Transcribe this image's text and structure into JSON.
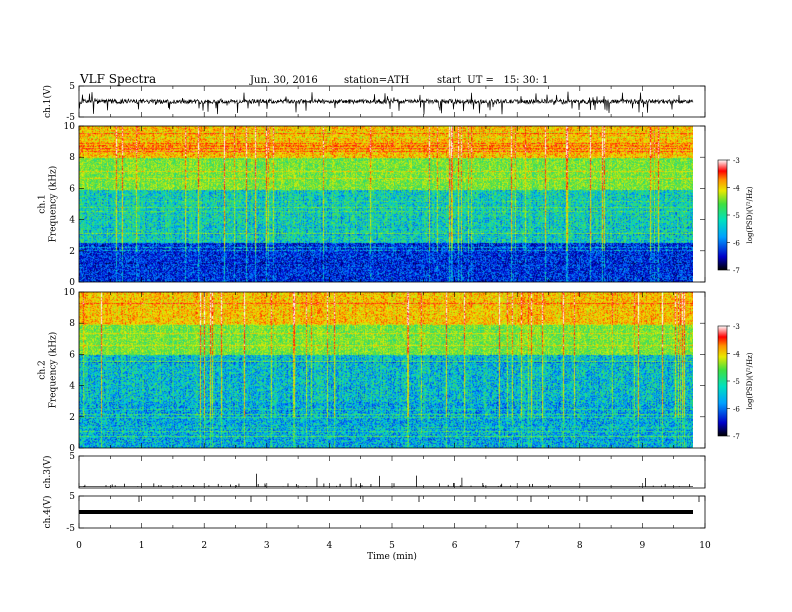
{
  "header": {
    "title": "VLF Spectra",
    "date": "Jun. 30, 2016",
    "station": "station=ATH",
    "start": "start  UT =   15: 30: 1"
  },
  "chart_data": [
    {
      "type": "line",
      "name": "ch1-waveform",
      "ylabel": "ch.1(V)",
      "ylim": [
        -5,
        5
      ],
      "yticks": [
        "5",
        "-5"
      ],
      "note": "dense noisy waveform around 0 V with spikes to about -4 V"
    },
    {
      "type": "heatmap",
      "name": "ch1-spectrogram",
      "ylabel": "ch.1\nFrequency (kHz)",
      "ylim": [
        0,
        10
      ],
      "yticks": [
        "0",
        "2",
        "4",
        "6",
        "8",
        "10"
      ],
      "xlim": [
        0,
        10
      ],
      "colorbar": {
        "label": "log(PSD)(V²/Hz)",
        "range": [
          -7,
          -3
        ],
        "ticks": [
          "-3",
          "-4",
          "-5",
          "-6",
          "-7"
        ]
      },
      "bands_khz": [
        {
          "from": 0,
          "to": 2.5,
          "level": -6.3
        },
        {
          "from": 2.5,
          "to": 6.0,
          "level": -5.6
        },
        {
          "from": 6.0,
          "to": 8.0,
          "level": -5.0
        },
        {
          "from": 8.0,
          "to": 10,
          "level": -4.3
        }
      ]
    },
    {
      "type": "heatmap",
      "name": "ch2-spectrogram",
      "ylabel": "ch.2\nFrequency (kHz)",
      "ylim": [
        0,
        10
      ],
      "yticks": [
        "0",
        "2",
        "4",
        "6",
        "8",
        "10"
      ],
      "xlim": [
        0,
        10
      ],
      "colorbar": {
        "label": "log(PSD)(V²/Hz)",
        "range": [
          -7,
          -3
        ],
        "ticks": [
          "-3",
          "-4",
          "-5",
          "-6",
          "-7"
        ]
      },
      "bands_khz": [
        {
          "from": 0,
          "to": 3.0,
          "level": -5.8
        },
        {
          "from": 3.0,
          "to": 6.0,
          "level": -5.7
        },
        {
          "from": 6.0,
          "to": 8.0,
          "level": -5.0
        },
        {
          "from": 8.0,
          "to": 10,
          "level": -4.3
        }
      ]
    },
    {
      "type": "line",
      "name": "ch3-waveform",
      "ylabel": "ch.3(V)",
      "ylim": [
        0,
        5
      ],
      "yticks": [
        "5"
      ],
      "note": "flat near 0 V with sparse upward spikes up to about 2 V"
    },
    {
      "type": "line",
      "name": "ch4-waveform",
      "ylabel": "ch.4(V)",
      "ylim": [
        -5,
        5
      ],
      "yticks": [
        "5",
        "-5"
      ],
      "note": "constant value of about 0 V drawn as a thick line"
    }
  ],
  "xaxis": {
    "label": "Time  (min)",
    "ticks": [
      "0",
      "1",
      "2",
      "3",
      "4",
      "5",
      "6",
      "7",
      "8",
      "9",
      "10"
    ],
    "range": [
      0,
      10
    ]
  }
}
